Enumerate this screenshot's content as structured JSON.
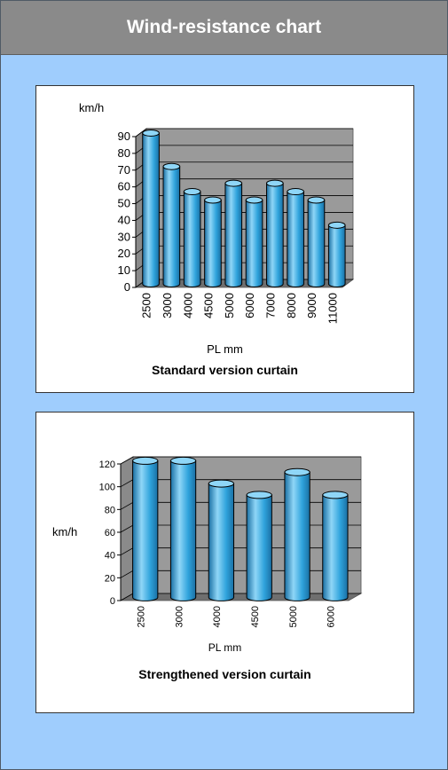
{
  "header": {
    "title": "Wind-resistance chart"
  },
  "colors": {
    "bar": "#2fa3dc",
    "bar_light": "#8fd6f7",
    "bar_dark": "#1a6fa3",
    "wall": "#9a9a9a",
    "floor": "#6f6f6f",
    "background": "#9fcdfd"
  },
  "chart_data": [
    {
      "type": "bar",
      "title": "Standard version curtain",
      "ylabel": "km/h",
      "xlabel": "PL mm",
      "categories": [
        "2500",
        "3000",
        "4000",
        "4500",
        "5000",
        "6000",
        "7000",
        "8000",
        "9000",
        "11000"
      ],
      "values": [
        90,
        70,
        55,
        50,
        60,
        50,
        60,
        55,
        50,
        35
      ],
      "ylim": [
        0,
        90
      ],
      "yticks": [
        0,
        10,
        20,
        30,
        40,
        50,
        60,
        70,
        80,
        90
      ],
      "grid": true
    },
    {
      "type": "bar",
      "title": "Strengthened version curtain",
      "ylabel": "km/h",
      "xlabel": "PL mm",
      "categories": [
        "2500",
        "3000",
        "4000",
        "4500",
        "5000",
        "6000"
      ],
      "values": [
        120,
        120,
        100,
        90,
        110,
        90
      ],
      "ylim": [
        0,
        120
      ],
      "yticks": [
        0,
        20,
        40,
        60,
        80,
        100,
        120
      ],
      "grid": true
    }
  ]
}
